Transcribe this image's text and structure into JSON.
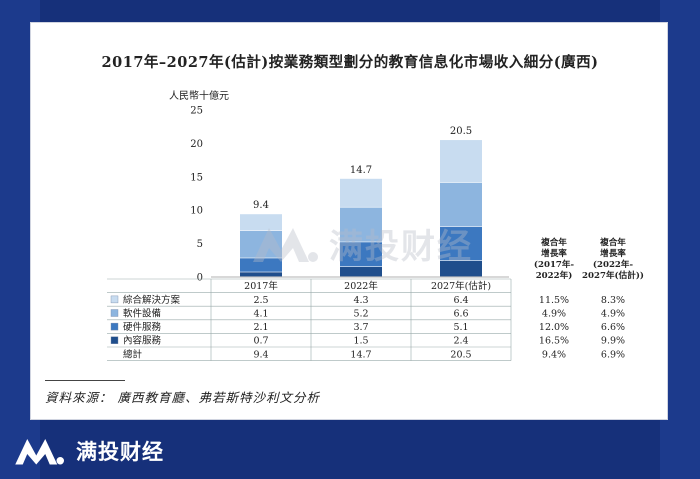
{
  "chart_data": {
    "type": "bar",
    "stacked": true,
    "title": "2017年–2027年(估計)按業務類型劃分的教育信息化市場收入細分(廣西)",
    "ylabel": "人民幣十億元",
    "ylim": [
      0,
      25
    ],
    "yticks": [
      "0",
      "5",
      "10",
      "15",
      "20",
      "25"
    ],
    "categories": [
      "2017年",
      "2022年",
      "2027年(估計)"
    ],
    "totals_label": [
      "9.4",
      "14.7",
      "20.5"
    ],
    "series": [
      {
        "name": "內容服務",
        "values": [
          0.7,
          1.5,
          2.4
        ],
        "labels": [
          "0.7",
          "1.5",
          "2.4"
        ],
        "color": "#1f4e8c",
        "cagr1": "16.5%",
        "cagr2": "9.9%"
      },
      {
        "name": "硬件服務",
        "values": [
          2.1,
          3.7,
          5.1
        ],
        "labels": [
          "2.1",
          "3.7",
          "5.1"
        ],
        "color": "#3c78c0",
        "cagr1": "12.0%",
        "cagr2": "6.6%"
      },
      {
        "name": "軟件設備",
        "values": [
          4.1,
          5.2,
          6.6
        ],
        "labels": [
          "4.1",
          "5.2",
          "6.6"
        ],
        "color": "#8db5df",
        "cagr1": "4.9%",
        "cagr2": "4.9%"
      },
      {
        "name": "綜合解決方案",
        "values": [
          2.5,
          4.3,
          6.4
        ],
        "labels": [
          "2.5",
          "4.3",
          "6.4"
        ],
        "color": "#c8dcf0",
        "cagr1": "11.5%",
        "cagr2": "8.3%"
      }
    ],
    "table_order": [
      3,
      2,
      1,
      0
    ],
    "total_row": {
      "name": "總計",
      "values": [
        "9.4",
        "14.7",
        "20.5"
      ],
      "cagr1": "9.4%",
      "cagr2": "6.9%"
    },
    "cagr_headers": [
      [
        "複合年",
        "增長率",
        "(2017年-",
        "2022年)"
      ],
      [
        "複合年",
        "增長率",
        "(2022年-",
        "2027年(估計))"
      ]
    ]
  },
  "source_text": "資料來源： 廣西教育廳、弗若斯特沙利文分析",
  "watermark_text": "满投财经",
  "brand_text": "满投财经"
}
